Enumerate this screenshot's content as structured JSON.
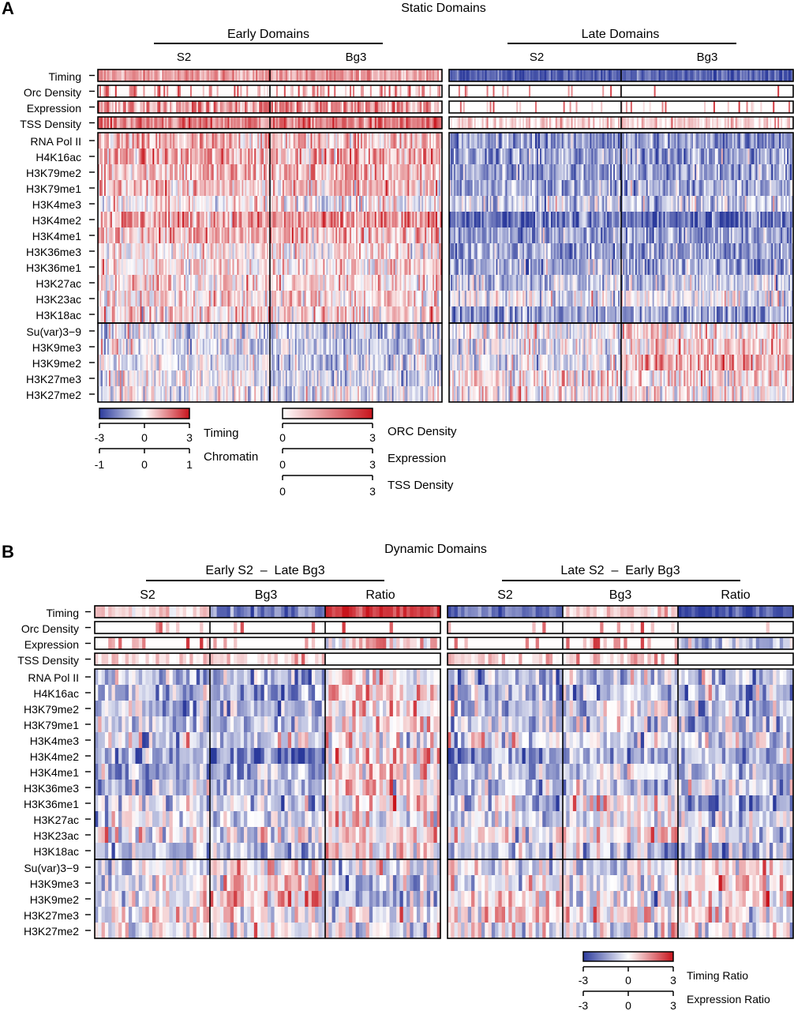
{
  "panels": [
    {
      "letter": "A",
      "title": "Static Domains",
      "groups": [
        {
          "header": "Early Domains",
          "subs": [
            "S2",
            "Bg3"
          ]
        },
        {
          "header": "Late Domains",
          "subs": [
            "S2",
            "Bg3"
          ]
        }
      ]
    },
    {
      "letter": "B",
      "title": "Dynamic Domains",
      "groups": [
        {
          "header": "Early S2  –  Late Bg3",
          "subs": [
            "S2",
            "Bg3",
            "Ratio"
          ]
        },
        {
          "header": "Late S2  –  Early Bg3",
          "subs": [
            "S2",
            "Bg3",
            "Ratio"
          ]
        }
      ]
    }
  ],
  "top_tracks": [
    "Timing",
    "Orc Density",
    "Expression",
    "TSS Density"
  ],
  "chromatin_marks": [
    "RNA Pol II",
    "H4K16ac",
    "H3K79me2",
    "H3K79me1",
    "H3K4me3",
    "H3K4me2",
    "H3K4me1",
    "H3K36me3",
    "H3K36me1",
    "H3K27ac",
    "H3K23ac",
    "H3K18ac"
  ],
  "silencing_marks": [
    "Su(var)3−9",
    "H3K9me3",
    "H3K9me2",
    "H3K27me3",
    "H3K27me2"
  ],
  "legends": {
    "diverging": {
      "colors": [
        "#2b3a9c",
        "#ffffff",
        "#c8141c"
      ],
      "scales": [
        {
          "name": "Timing",
          "ticks": [
            "-3",
            "0",
            "3"
          ]
        },
        {
          "name": "Chromatin",
          "ticks": [
            "-1",
            "0",
            "1"
          ]
        }
      ]
    },
    "sequential": {
      "colors": [
        "#ffffff",
        "#c8141c"
      ],
      "scales": [
        {
          "name": "ORC Density",
          "ticks": [
            "0",
            "3"
          ]
        },
        {
          "name": "Expression",
          "ticks": [
            "0",
            "3"
          ]
        },
        {
          "name": "TSS Density",
          "ticks": [
            "0",
            "3"
          ]
        }
      ]
    },
    "ratio": {
      "colors": [
        "#2b3a9c",
        "#ffffff",
        "#c8141c"
      ],
      "scales": [
        {
          "name": "Timing Ratio",
          "ticks": [
            "-3",
            "0",
            "3"
          ]
        },
        {
          "name": "Expression Ratio",
          "ticks": [
            "-3",
            "0",
            "3"
          ]
        }
      ]
    }
  },
  "chart_data": [
    {
      "type": "heatmap",
      "title": "Static Domains",
      "columns": [
        "Early Domains S2",
        "Early Domains Bg3",
        "Late Domains S2",
        "Late Domains Bg3"
      ],
      "row_labels": [
        "Timing",
        "Orc Density",
        "Expression",
        "TSS Density",
        "RNA Pol II",
        "H4K16ac",
        "H3K79me2",
        "H3K79me1",
        "H3K4me3",
        "H3K4me2",
        "H3K4me1",
        "H3K36me3",
        "H3K36me1",
        "H3K27ac",
        "H3K23ac",
        "H3K18ac",
        "Su(var)3−9",
        "H3K9me3",
        "H3K9me2",
        "H3K27me3",
        "H3K27me2"
      ],
      "mean_values": [
        [
          1.2,
          1.2,
          -2.4,
          -2.4
        ],
        [
          0.5,
          0.5,
          0.02,
          0.02
        ],
        [
          0.9,
          0.9,
          0.1,
          0.1
        ],
        [
          1.6,
          1.6,
          0.5,
          0.5
        ],
        [
          0.25,
          0.25,
          -0.5,
          -0.5
        ],
        [
          0.35,
          0.35,
          -0.45,
          -0.45
        ],
        [
          0.3,
          0.3,
          -0.45,
          -0.45
        ],
        [
          0.25,
          0.25,
          -0.4,
          -0.4
        ],
        [
          0.05,
          0.05,
          -0.25,
          -0.25
        ],
        [
          0.4,
          0.4,
          -0.7,
          -0.7
        ],
        [
          0.3,
          0.3,
          -0.45,
          -0.45
        ],
        [
          0.05,
          0.1,
          -0.45,
          -0.45
        ],
        [
          0.1,
          0.15,
          -0.4,
          -0.4
        ],
        [
          0.15,
          0.15,
          -0.25,
          -0.25
        ],
        [
          0.15,
          0.15,
          -0.1,
          -0.1
        ],
        [
          0.15,
          0.15,
          -0.45,
          -0.45
        ],
        [
          -0.15,
          -0.25,
          -0.05,
          0.15
        ],
        [
          -0.1,
          -0.25,
          -0.1,
          0.2
        ],
        [
          -0.1,
          -0.25,
          -0.1,
          0.35
        ],
        [
          0.0,
          -0.2,
          0.1,
          0.1
        ],
        [
          -0.05,
          -0.05,
          0.05,
          0.05
        ]
      ],
      "color_scales": {
        "Timing": [
          -3,
          3
        ],
        "Chromatin": [
          -1,
          1
        ],
        "ORC Density": [
          0,
          3
        ],
        "Expression": [
          0,
          3
        ],
        "TSS Density": [
          0,
          3
        ]
      }
    },
    {
      "type": "heatmap",
      "title": "Dynamic Domains",
      "columns": [
        "Early S2 – Late Bg3 S2",
        "Early S2 – Late Bg3 Bg3",
        "Early S2 – Late Bg3 Ratio",
        "Late S2 – Early Bg3 S2",
        "Late S2 – Early Bg3 Bg3",
        "Late S2 – Early Bg3 Ratio"
      ],
      "row_labels": [
        "Timing",
        "Orc Density",
        "Expression",
        "TSS Density",
        "RNA Pol II",
        "H4K16ac",
        "H3K79me2",
        "H3K79me1",
        "H3K4me3",
        "H3K4me2",
        "H3K4me1",
        "H3K36me3",
        "H3K36me1",
        "H3K27ac",
        "H3K23ac",
        "H3K18ac",
        "Su(var)3−9",
        "H3K9me3",
        "H3K9me2",
        "H3K27me3",
        "H3K27me2"
      ],
      "mean_values": [
        [
          0.6,
          -2.0,
          2.4,
          -2.0,
          0.6,
          -2.6
        ],
        [
          0.03,
          0.02,
          0.0,
          0.03,
          0.05,
          0.0
        ],
        [
          0.2,
          0.1,
          0.2,
          0.2,
          0.4,
          -0.3
        ],
        [
          0.5,
          0.5,
          0.0,
          0.5,
          0.5,
          0.0
        ],
        [
          -0.3,
          -0.4,
          0.1,
          -0.35,
          -0.25,
          -0.3
        ],
        [
          -0.35,
          -0.4,
          0.15,
          -0.4,
          -0.3,
          -0.35
        ],
        [
          -0.3,
          -0.35,
          0.15,
          -0.35,
          -0.1,
          -0.35
        ],
        [
          -0.2,
          -0.3,
          0.15,
          -0.25,
          -0.1,
          -0.3
        ],
        [
          -0.15,
          -0.2,
          0.05,
          -0.15,
          -0.1,
          -0.1
        ],
        [
          -0.5,
          -0.55,
          0.2,
          -0.55,
          -0.35,
          -0.3
        ],
        [
          -0.3,
          -0.35,
          0.15,
          -0.35,
          -0.15,
          -0.3
        ],
        [
          -0.3,
          -0.35,
          0.1,
          -0.3,
          -0.2,
          -0.25
        ],
        [
          -0.2,
          -0.3,
          0.15,
          -0.25,
          0.1,
          -0.5
        ],
        [
          -0.15,
          -0.2,
          0.05,
          -0.15,
          -0.05,
          -0.15
        ],
        [
          0.05,
          -0.05,
          0.15,
          0.05,
          0.15,
          -0.15
        ],
        [
          -0.3,
          -0.35,
          0.15,
          -0.3,
          -0.15,
          -0.3
        ],
        [
          -0.15,
          0.05,
          -0.15,
          0.0,
          -0.15,
          0.1
        ],
        [
          -0.1,
          0.15,
          -0.25,
          0.0,
          -0.15,
          0.1
        ],
        [
          0.0,
          0.35,
          -0.45,
          0.05,
          -0.2,
          0.2
        ],
        [
          0.05,
          0.1,
          -0.05,
          0.15,
          0.1,
          0.05
        ],
        [
          -0.05,
          0.0,
          -0.05,
          0.0,
          -0.05,
          0.0
        ]
      ],
      "color_scales": {
        "Timing Ratio": [
          -3,
          3
        ],
        "Expression Ratio": [
          -3,
          3
        ]
      }
    }
  ]
}
